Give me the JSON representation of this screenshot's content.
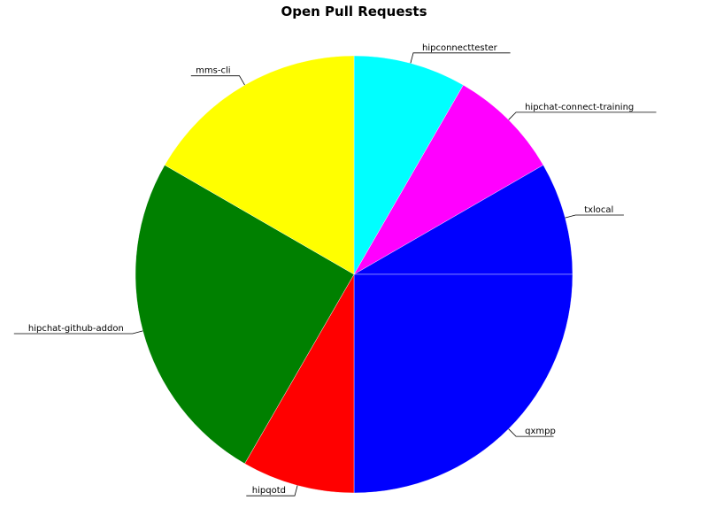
{
  "chart_data": {
    "type": "pie",
    "title": "Open Pull Requests",
    "start": "top",
    "direction": "clockwise",
    "labels": [
      "hipconnecttester",
      "hipchat-connect-training",
      "txlocal",
      "qxmpp",
      "hipqotd",
      "hipchat-github-addon",
      "mms-cli"
    ],
    "values": [
      1,
      1,
      1,
      3,
      1,
      3,
      2
    ],
    "colors": [
      "#00ffff",
      "#ff00ff",
      "#0000ff",
      "#0000ff",
      "#ff0000",
      "#008000",
      "#ffff00"
    ]
  }
}
